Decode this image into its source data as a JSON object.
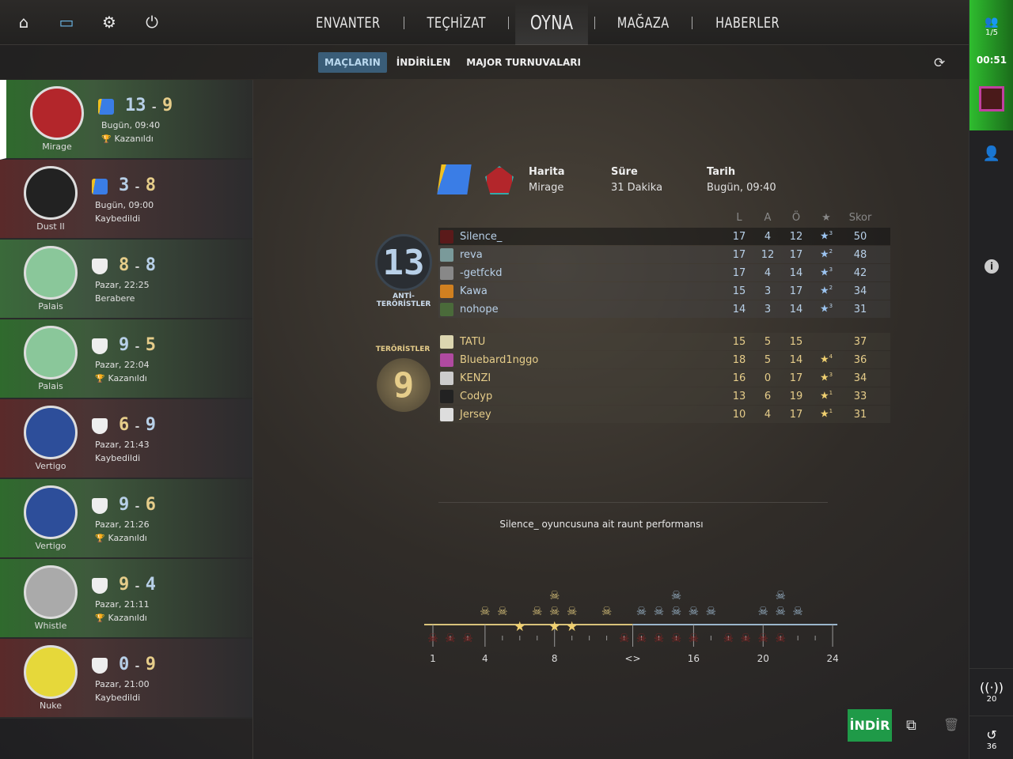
{
  "topbar": {
    "icons": [
      "home-icon",
      "tv-icon",
      "gear-icon",
      "power-icon"
    ],
    "nav": [
      "ENVANTER",
      "TEÇHİZAT",
      "OYNA",
      "MAĞAZA",
      "HABERLER"
    ],
    "active": "OYNA"
  },
  "subnav": {
    "tabs": [
      "MAÇLARIN",
      "İNDİRİLEN",
      "MAJOR TURNUVALARI"
    ],
    "active": "MAÇLARIN"
  },
  "matches": [
    {
      "map": "Mirage",
      "score1": "13",
      "score2": "9",
      "c1": "ct",
      "c2": "t",
      "date": "Bugün, 09:40",
      "result": "Kazanıldı",
      "won": true,
      "state": "win",
      "mode": "competitive",
      "mapColor": "#b3262b"
    },
    {
      "map": "Dust II",
      "score1": "3",
      "score2": "8",
      "c1": "ct",
      "c2": "t",
      "date": "Bugün, 09:00",
      "result": "Kaybedildi",
      "won": false,
      "state": "loss",
      "mode": "competitive",
      "mapColor": "#222"
    },
    {
      "map": "Palais",
      "score1": "8",
      "score2": "8",
      "c1": "t",
      "c2": "ct",
      "date": "Pazar, 22:25",
      "result": "Berabere",
      "won": false,
      "state": "draw",
      "mode": "wingman",
      "mapColor": "#8ac79a"
    },
    {
      "map": "Palais",
      "score1": "9",
      "score2": "5",
      "c1": "ct",
      "c2": "t",
      "date": "Pazar, 22:04",
      "result": "Kazanıldı",
      "won": true,
      "state": "win",
      "mode": "wingman",
      "mapColor": "#8ac79a"
    },
    {
      "map": "Vertigo",
      "score1": "6",
      "score2": "9",
      "c1": "t",
      "c2": "ct",
      "date": "Pazar, 21:43",
      "result": "Kaybedildi",
      "won": false,
      "state": "loss",
      "mode": "wingman",
      "mapColor": "#2d4e9a"
    },
    {
      "map": "Vertigo",
      "score1": "9",
      "score2": "6",
      "c1": "ct",
      "c2": "t",
      "date": "Pazar, 21:26",
      "result": "Kazanıldı",
      "won": true,
      "state": "win",
      "mode": "wingman",
      "mapColor": "#2d4e9a"
    },
    {
      "map": "Whistle",
      "score1": "9",
      "score2": "4",
      "c1": "t",
      "c2": "ct",
      "date": "Pazar, 21:11",
      "result": "Kazanıldı",
      "won": true,
      "state": "win",
      "mode": "wingman",
      "mapColor": "#aaa"
    },
    {
      "map": "Nuke",
      "score1": "0",
      "score2": "9",
      "c1": "ct",
      "c2": "t",
      "date": "Pazar, 21:00",
      "result": "Kaybedildi",
      "won": false,
      "state": "loss",
      "mode": "wingman",
      "mapColor": "#e6d83a"
    }
  ],
  "detail": {
    "map_label": "Harita",
    "map": "Mirage",
    "duration_label": "Süre",
    "duration": "31 Dakika",
    "date_label": "Tarih",
    "date": "Bugün, 09:40",
    "columns": [
      "L",
      "A",
      "Ö",
      "★",
      "Skor"
    ],
    "ct": {
      "label": "ANTİ-TERÖRİSTLER",
      "score": "13",
      "players": [
        {
          "name": "Silence_",
          "k": "17",
          "a": "4",
          "d": "12",
          "mvp": "3",
          "score": "50",
          "avatar": "#5a1a1a"
        },
        {
          "name": "reva",
          "k": "17",
          "a": "12",
          "d": "17",
          "mvp": "2",
          "score": "48",
          "avatar": "#7a9a9a"
        },
        {
          "name": "-getfckd",
          "k": "17",
          "a": "4",
          "d": "14",
          "mvp": "3",
          "score": "42",
          "avatar": "#888"
        },
        {
          "name": "Kawa",
          "k": "15",
          "a": "3",
          "d": "17",
          "mvp": "2",
          "score": "34",
          "avatar": "#d08020"
        },
        {
          "name": "nohope",
          "k": "14",
          "a": "3",
          "d": "14",
          "mvp": "3",
          "score": "31",
          "avatar": "#4a6a3a"
        }
      ]
    },
    "t": {
      "label": "TERÖRİSTLER",
      "score": "9",
      "players": [
        {
          "name": "TATU",
          "k": "15",
          "a": "5",
          "d": "15",
          "mvp": "",
          "score": "37",
          "avatar": "#dcd6b0"
        },
        {
          "name": "Bluebard1nggo",
          "k": "18",
          "a": "5",
          "d": "14",
          "mvp": "4",
          "score": "36",
          "avatar": "#b04aa0"
        },
        {
          "name": "KENZI",
          "k": "16",
          "a": "0",
          "d": "17",
          "mvp": "3",
          "score": "34",
          "avatar": "#ccc"
        },
        {
          "name": "Codyp",
          "k": "13",
          "a": "6",
          "d": "19",
          "mvp": "1",
          "score": "33",
          "avatar": "#222"
        },
        {
          "name": "Jersey",
          "k": "10",
          "a": "4",
          "d": "17",
          "mvp": "1",
          "score": "31",
          "avatar": "#ddd"
        }
      ]
    },
    "perf_title": "Silence_ oyuncusuna ait raunt performansı"
  },
  "round_performance": {
    "rounds": 24,
    "halftime_label": "<>",
    "tick_labels": [
      "1",
      "4",
      "8",
      "<>",
      "16",
      "20",
      "24"
    ],
    "kills": {
      "4": 1,
      "5": 1,
      "7": 1,
      "8": 2,
      "9": 1,
      "11": 1,
      "13": 1,
      "14": 1,
      "15": 2,
      "16": 1,
      "17": 1,
      "20": 1,
      "21": 2,
      "22": 1
    },
    "mvp_rounds": [
      6,
      8,
      9
    ],
    "death_rounds": [
      1,
      2,
      3,
      12,
      13,
      14,
      15,
      16,
      18,
      19,
      20,
      21
    ],
    "colors": {
      "t": "#d8c27a",
      "ct": "#9bb6cc",
      "death": "#8a2424"
    }
  },
  "sidebar": {
    "party": "1/5",
    "timer": "00:51",
    "ping": "20",
    "history": "36"
  },
  "actions": {
    "download": "İNDİR"
  }
}
